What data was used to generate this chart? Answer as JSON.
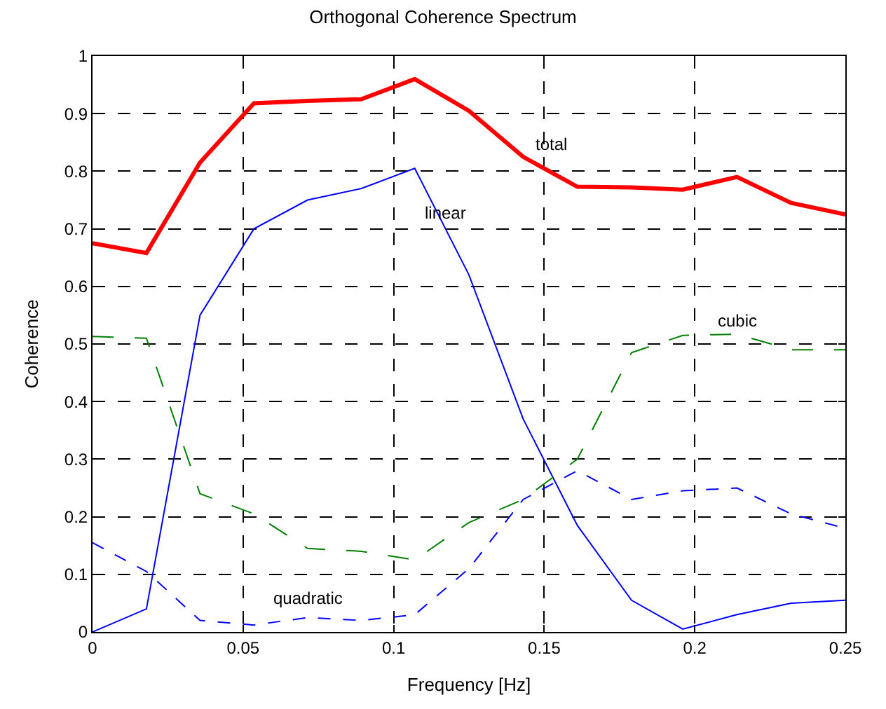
{
  "chart_data": {
    "type": "line",
    "title": "Orthogonal Coherence Spectrum",
    "xlabel": "Frequency [Hz]",
    "ylabel": "Coherence",
    "x": [
      0,
      0.0179,
      0.0357,
      0.0536,
      0.0714,
      0.0893,
      0.107,
      0.125,
      0.143,
      0.161,
      0.179,
      0.196,
      0.214,
      0.232,
      0.25
    ],
    "series": [
      {
        "name": "total",
        "color": "#ff0000",
        "line_style": "solid",
        "values": [
          0.675,
          0.658,
          0.815,
          0.918,
          0.922,
          0.925,
          0.96,
          0.905,
          0.825,
          0.773,
          0.772,
          0.768,
          0.79,
          0.745,
          0.725
        ]
      },
      {
        "name": "linear",
        "color": "#0000ff",
        "line_style": "solid",
        "values": [
          0,
          0.04,
          0.55,
          0.7,
          0.75,
          0.77,
          0.805,
          0.62,
          0.37,
          0.185,
          0.055,
          0.005,
          0.03,
          0.05,
          0.055
        ]
      },
      {
        "name": "cubic",
        "color": "#007f00",
        "line_style": "dashed",
        "values": [
          0.513,
          0.51,
          0.24,
          0.205,
          0.145,
          0.14,
          0.125,
          0.19,
          0.23,
          0.3,
          0.485,
          0.515,
          0.517,
          0.49,
          0.49
        ]
      },
      {
        "name": "quadratic",
        "color": "#0000ff",
        "line_style": "dotted",
        "values": [
          0.155,
          0.105,
          0.02,
          0.012,
          0.025,
          0.02,
          0.03,
          0.11,
          0.23,
          0.28,
          0.23,
          0.245,
          0.25,
          0.205,
          0.18
        ]
      }
    ],
    "xlim": [
      0,
      0.25
    ],
    "xticks": [
      0,
      0.05,
      0.1,
      0.15,
      0.2,
      0.25
    ],
    "ylim": [
      0,
      1
    ],
    "yticks": [
      0,
      0.1,
      0.2,
      0.3,
      0.4,
      0.5,
      0.6,
      0.7,
      0.8,
      0.9,
      1
    ],
    "grid": true,
    "legend": false
  }
}
